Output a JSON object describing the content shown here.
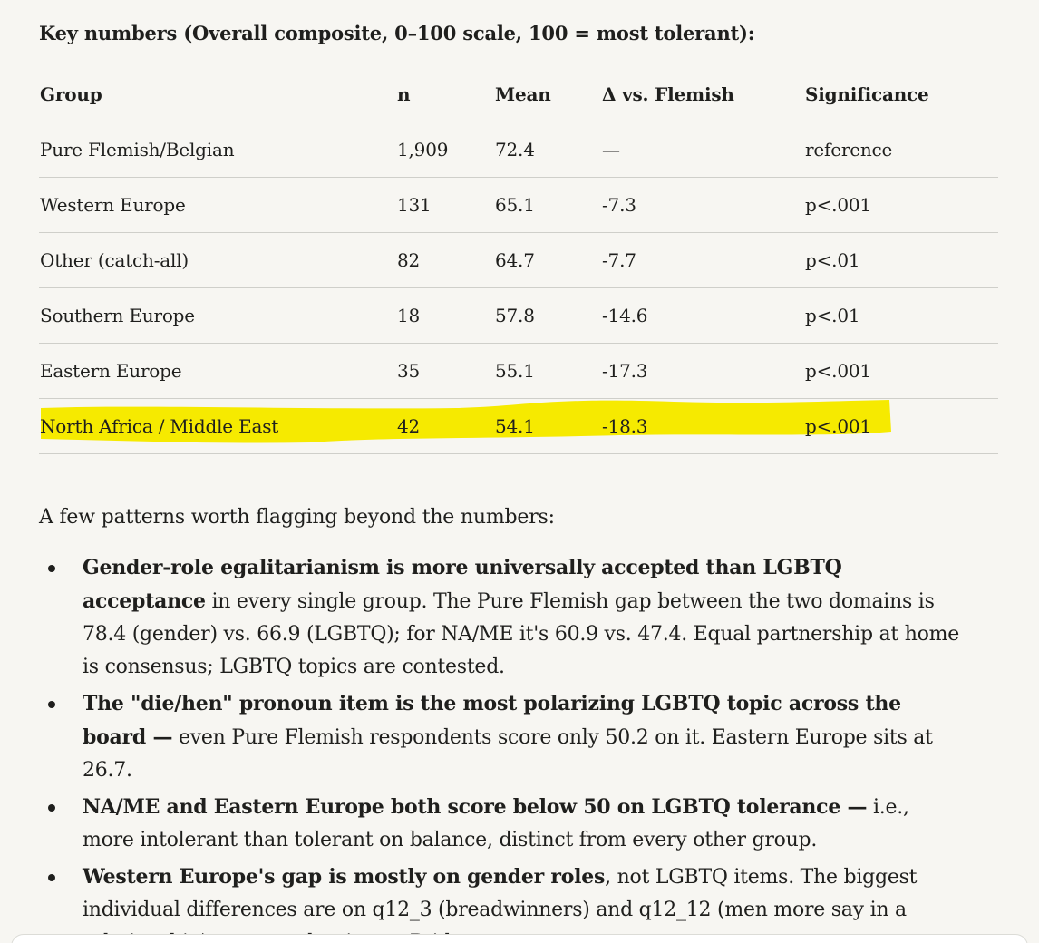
{
  "heading": "Key numbers (Overall composite, 0–100 scale, 100 = most tolerant):",
  "table": {
    "headers": [
      "Group",
      "n",
      "Mean",
      "Δ vs. Flemish",
      "Significance"
    ],
    "rows": [
      [
        "Pure Flemish/Belgian",
        "1,909",
        "72.4",
        "—",
        "reference"
      ],
      [
        "Western Europe",
        "131",
        "65.1",
        "-7.3",
        "p<.001"
      ],
      [
        "Other (catch-all)",
        "82",
        "64.7",
        "-7.7",
        "p<.01"
      ],
      [
        "Southern Europe",
        "18",
        "57.8",
        "-14.6",
        "p<.01"
      ],
      [
        "Eastern Europe",
        "35",
        "55.1",
        "-17.3",
        "p<.001"
      ],
      [
        "North Africa / Middle East",
        "42",
        "54.1",
        "-18.3",
        "p<.001"
      ]
    ],
    "highlighted_row": "North Africa / Middle East",
    "highlight_color": "#f6ea00"
  },
  "intro": "A few patterns worth flagging beyond the numbers:",
  "bullets": [
    {
      "bold": "Gender-role egalitarianism is more universally accepted than LGBTQ acceptance",
      "rest": " in every single group. The Pure Flemish gap between the two domains is 78.4 (gender) vs. 66.9 (LGBTQ); for NA/ME it's 60.9 vs. 47.4. Equal partnership at home is consensus; LGBTQ topics are contested."
    },
    {
      "bold": "The \"die/hen\" pronoun item is the most polarizing LGBTQ topic across the board —",
      "rest": " even Pure Flemish respondents score only 50.2 on it. Eastern Europe sits at 26.7."
    },
    {
      "bold": "NA/ME and Eastern Europe both score below 50 on LGBTQ tolerance —",
      "rest": " i.e., more intolerant than tolerant on balance, distinct from every other group."
    },
    {
      "bold": "Western Europe's gap is mostly on gender roles",
      "rest": ", not LGBTQ items. The biggest individual differences are on q12_3 (breadwinners) and q12_12 (men more say in a relationship), not on adoption or Pride."
    }
  ]
}
